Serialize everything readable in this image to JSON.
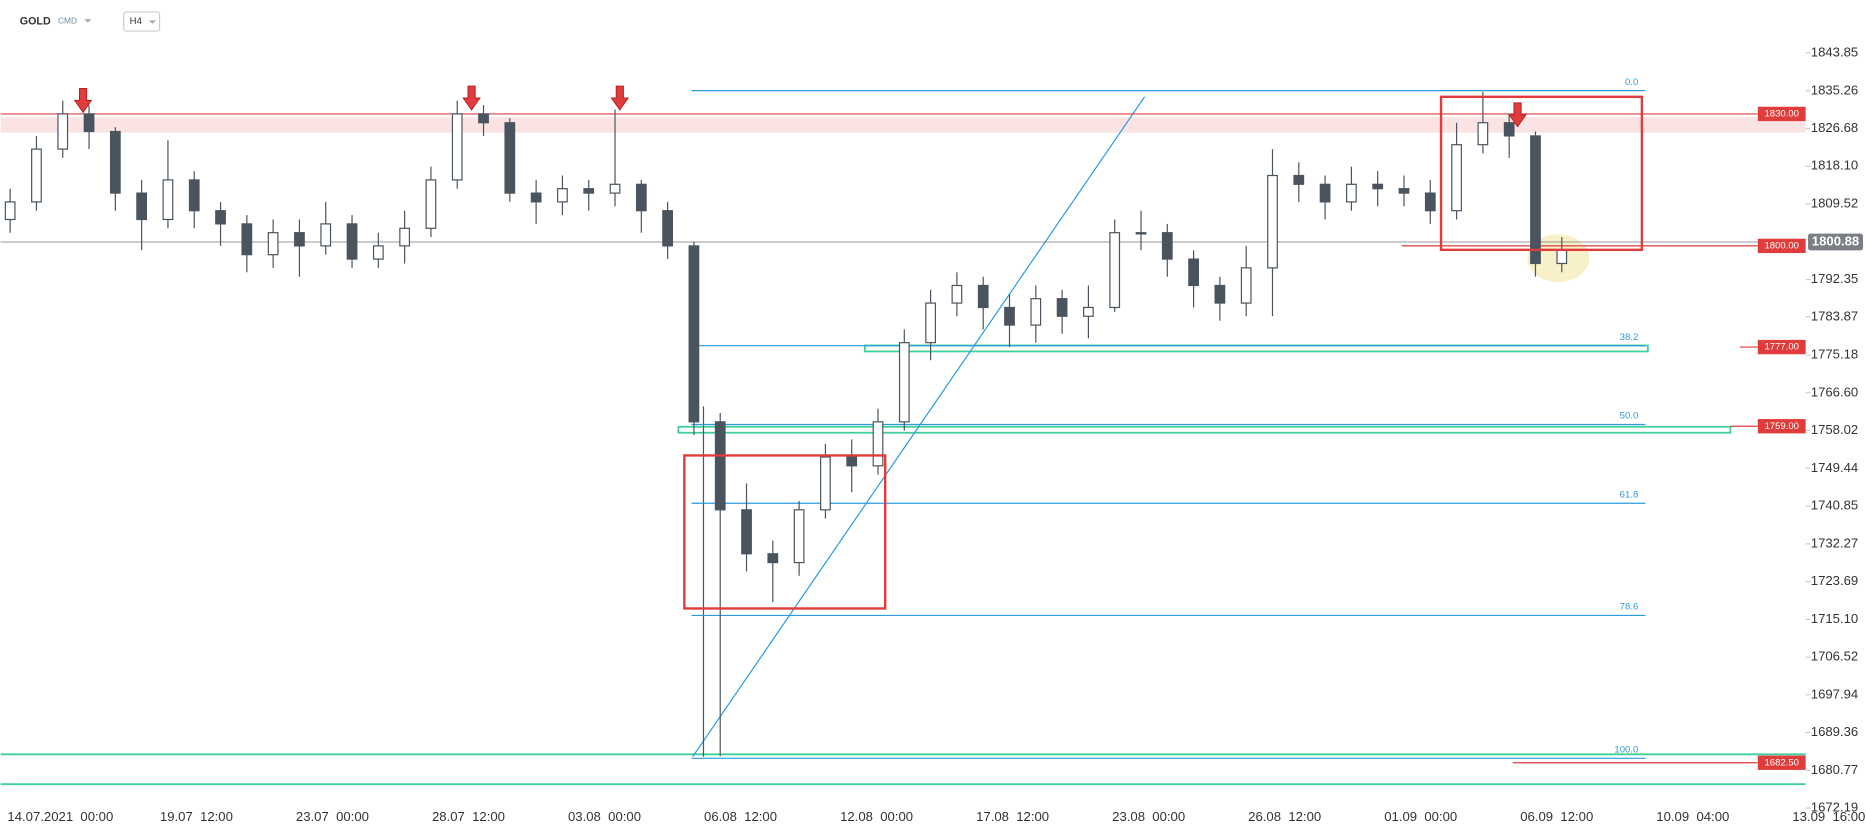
{
  "chart_data": {
    "type": "candlestick",
    "symbol": "GOLD",
    "symbol_type": "CMD",
    "timeframe": "H4",
    "categories": [
      "14.07.2021  00:00",
      "19.07  12:00",
      "23.07  00:00",
      "28.07  12:00",
      "03.08  00:00",
      "06.08  12:00",
      "12.08  00:00",
      "17.08  12:00",
      "23.08  00:00",
      "26.08  12:00",
      "01.09  00:00",
      "06.09  12:00",
      "10.09  04:00",
      "13.09  16:00"
    ],
    "open": [
      1806,
      1810,
      1822,
      1830,
      1826,
      1812,
      1806,
      1815,
      1808,
      1805,
      1798,
      1803,
      1800,
      1805,
      1797,
      1800,
      1804,
      1815,
      1830,
      1828,
      1812,
      1810,
      1813,
      1812,
      1814,
      1808,
      1800,
      1760,
      1740,
      1730,
      1728,
      1740,
      1752,
      1750,
      1760,
      1778,
      1787,
      1791,
      1786,
      1782,
      1788,
      1784,
      1786,
      1803,
      1803,
      1797,
      1791,
      1787,
      1795,
      1816,
      1814,
      1810,
      1814,
      1813,
      1812,
      1808,
      1823,
      1828,
      1825,
      1796
    ],
    "high": [
      1813,
      1825,
      1833,
      1832,
      1827,
      1815,
      1824,
      1817,
      1810,
      1807,
      1806,
      1806,
      1810,
      1807,
      1803,
      1808,
      1818,
      1833,
      1832,
      1829,
      1815,
      1816,
      1815,
      1831,
      1815,
      1810,
      1801,
      1762,
      1746,
      1733,
      1742,
      1755,
      1756,
      1763,
      1781,
      1790,
      1794,
      1793,
      1789,
      1791,
      1790,
      1791,
      1806,
      1808,
      1805,
      1799,
      1793,
      1800,
      1822,
      1819,
      1816,
      1818,
      1817,
      1816,
      1815,
      1828,
      1835,
      1830,
      1826,
      1802
    ],
    "low": [
      1803,
      1808,
      1820,
      1822,
      1808,
      1799,
      1804,
      1804,
      1800,
      1794,
      1795,
      1793,
      1798,
      1795,
      1795,
      1796,
      1802,
      1813,
      1825,
      1810,
      1805,
      1807,
      1808,
      1809,
      1803,
      1797,
      1757,
      1684,
      1726,
      1719,
      1725,
      1738,
      1744,
      1748,
      1758,
      1774,
      1784,
      1781,
      1777,
      1778,
      1780,
      1779,
      1785,
      1799,
      1793,
      1786,
      1783,
      1784,
      1784,
      1810,
      1806,
      1808,
      1809,
      1809,
      1805,
      1806,
      1821,
      1820,
      1793,
      1794
    ],
    "close": [
      1810,
      1822,
      1830,
      1826,
      1812,
      1806,
      1815,
      1808,
      1805,
      1798,
      1803,
      1800,
      1805,
      1797,
      1800,
      1804,
      1815,
      1830,
      1828,
      1812,
      1810,
      1813,
      1812,
      1814,
      1808,
      1800,
      1760,
      1740,
      1730,
      1728,
      1740,
      1752,
      1750,
      1760,
      1778,
      1787,
      1791,
      1786,
      1782,
      1788,
      1784,
      1786,
      1803,
      1803,
      1797,
      1791,
      1787,
      1795,
      1816,
      1814,
      1810,
      1814,
      1813,
      1812,
      1808,
      1823,
      1828,
      1825,
      1796,
      1799
    ],
    "ylim": [
      1671.1,
      1855.9
    ],
    "yticks": [
      1843.85,
      1835.26,
      1826.68,
      {
        "value": 1818.1,
        "label": "1818.10"
      },
      1809.52,
      1792.35,
      1783.87,
      1775.18,
      {
        "value": 1766.6,
        "label": "1766.60"
      },
      1758.02,
      1749.44,
      1740.85,
      1732.27,
      1723.69,
      {
        "value": 1715.1,
        "label": "1715.10"
      },
      1706.52,
      1697.94,
      1689.36,
      1680.77,
      1672.19
    ],
    "levels": [
      {
        "value": 1830,
        "label": "1830.00"
      },
      {
        "value": 1800,
        "label": "1800.00"
      },
      {
        "value": 1777,
        "label": "1777.00"
      },
      {
        "value": 1759,
        "label": "1759.00"
      },
      {
        "value": 1682.5,
        "label": "1682.50"
      }
    ],
    "current_price": {
      "value": 1800.88,
      "label": "1800.88"
    },
    "fibonacci": {
      "high": 1835.3,
      "low": 1683.5,
      "levels": [
        {
          "value": 0,
          "label": "0.0"
        },
        {
          "value": 38.2,
          "label": "38.2"
        },
        {
          "value": 50,
          "label": "50.0"
        },
        {
          "value": 61.8,
          "label": "61.8"
        },
        {
          "value": 78.6,
          "label": "78.6"
        },
        {
          "value": 100,
          "label": "100.0"
        }
      ]
    },
    "colors": {
      "candle": "#4a545e",
      "level": "#e03c3c",
      "fib": "#2a9be0",
      "zone": "#3fcf9a"
    }
  }
}
